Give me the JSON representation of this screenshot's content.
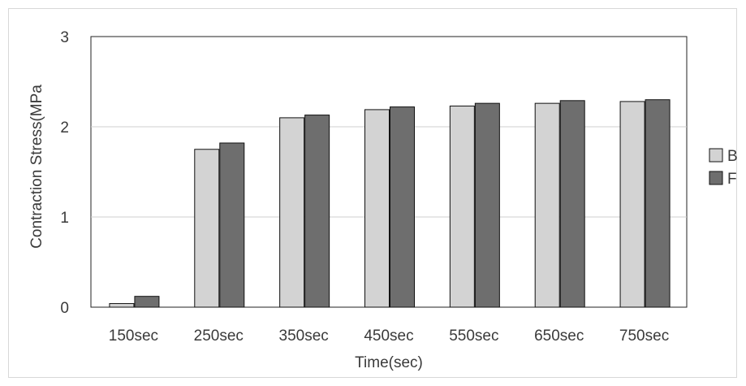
{
  "chart_data": {
    "type": "bar",
    "title": "",
    "xlabel": "Time(sec)",
    "ylabel": "Contraction Stress(MPa",
    "categories": [
      "150sec",
      "250sec",
      "350sec",
      "450sec",
      "550sec",
      "650sec",
      "750sec"
    ],
    "series": [
      {
        "name": "B",
        "color": "#d3d3d3",
        "values": [
          0.04,
          1.75,
          2.1,
          2.19,
          2.23,
          2.26,
          2.28
        ]
      },
      {
        "name": "F",
        "color": "#6e6e6e",
        "values": [
          0.12,
          1.82,
          2.13,
          2.22,
          2.26,
          2.29,
          2.3
        ]
      }
    ],
    "ylim": [
      0,
      3
    ],
    "yticks": [
      "0",
      "1",
      "2",
      "3"
    ],
    "grid": true,
    "legend_position": "right"
  }
}
